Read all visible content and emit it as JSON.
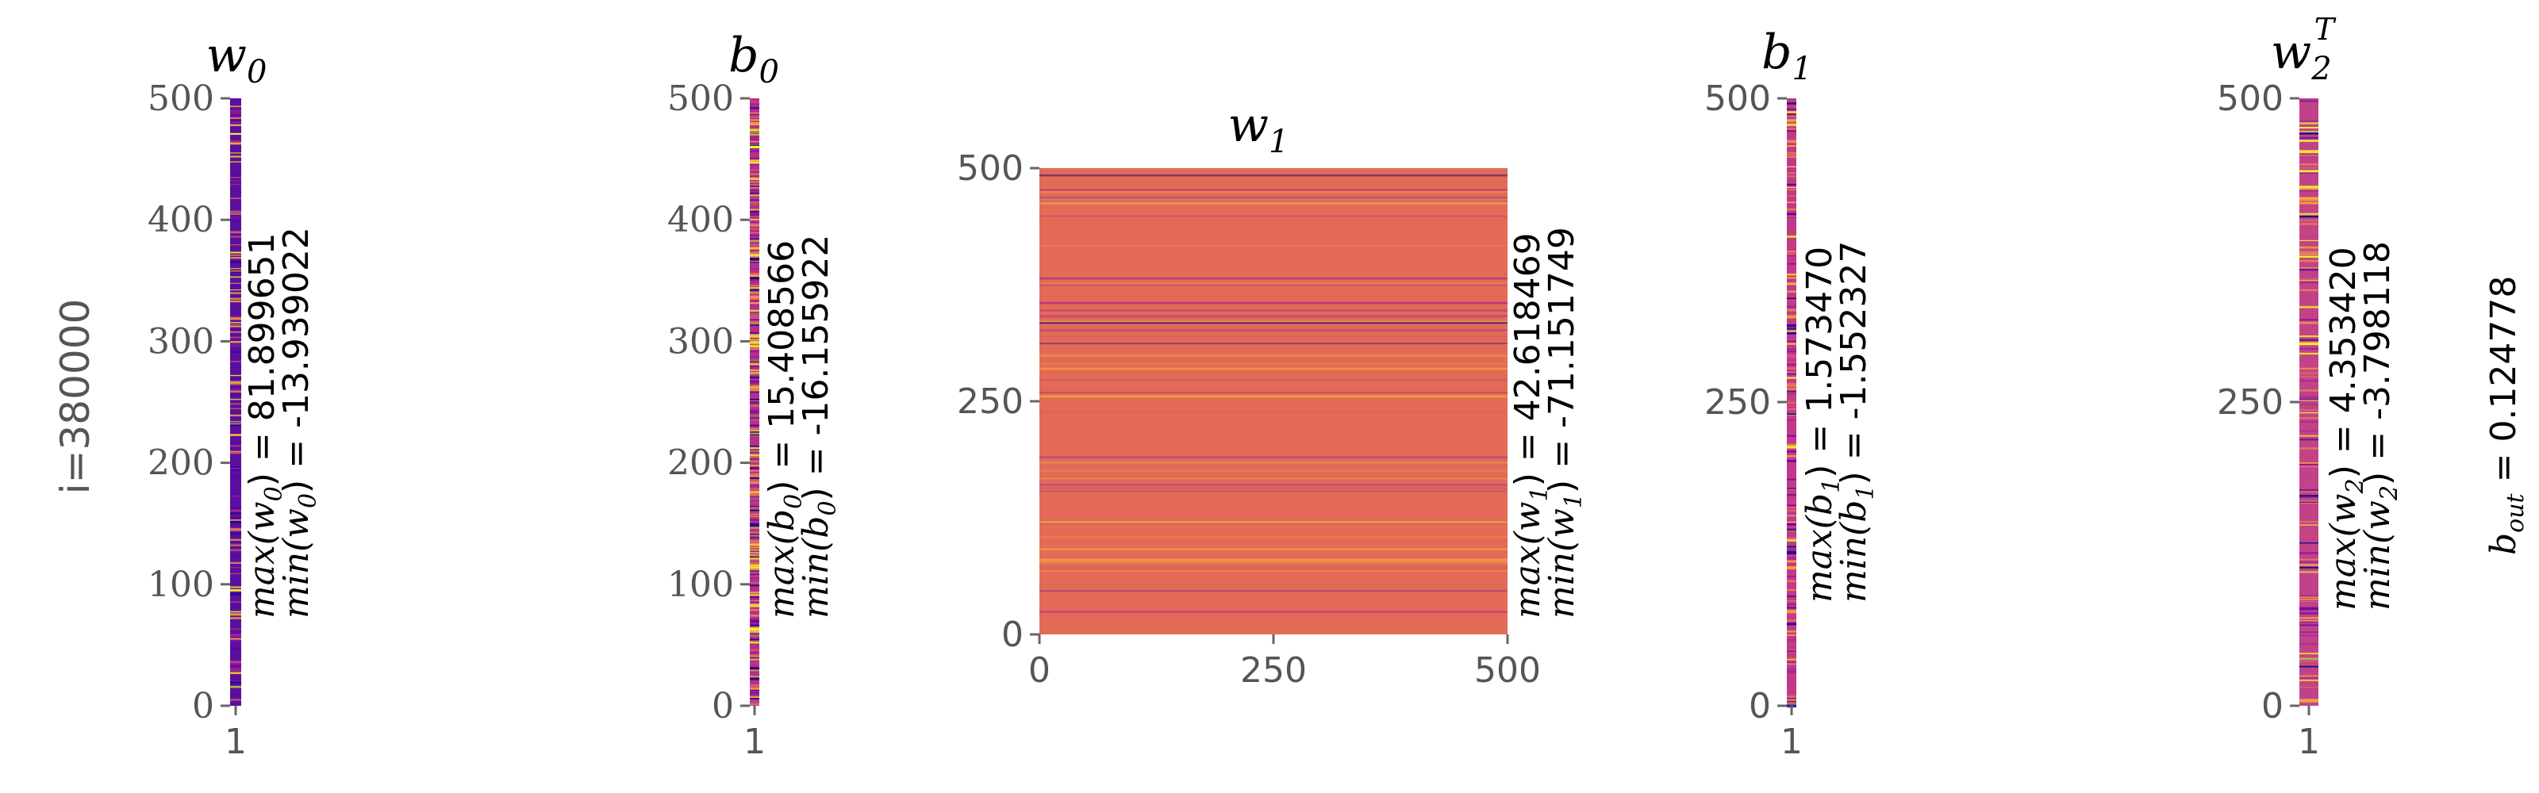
{
  "figure": {
    "row_label": "i=380000",
    "b_out": {
      "label": "b",
      "subscript": "out",
      "value_text": " = 0.124778"
    }
  },
  "colors": {
    "w0_base": "#5a0f9e",
    "b0_base": "#b52f8c",
    "w1_base": "#e26a57",
    "b1_base": "#c13a8a",
    "w2_base": "#c2428a",
    "tick": "#666666",
    "text": "#000000"
  },
  "chart_data": [
    {
      "id": "w0",
      "type": "heatmap",
      "title": {
        "base": "w",
        "sub": "0",
        "sup": ""
      },
      "xticks": [
        "1"
      ],
      "yticks": [
        "0",
        "100",
        "200",
        "300",
        "400",
        "500"
      ],
      "ylim": [
        0,
        500
      ],
      "tick_font": "serif",
      "colormap": "plasma",
      "stats": {
        "max_label": "max(w",
        "max_sub": "0",
        "max_value": ") = 81.899651",
        "min_label": "min(w",
        "min_sub": "0",
        "min_value": ") = -13.939022"
      }
    },
    {
      "id": "b0",
      "type": "heatmap",
      "title": {
        "base": "b",
        "sub": "0",
        "sup": ""
      },
      "xticks": [
        "1"
      ],
      "yticks": [
        "0",
        "100",
        "200",
        "300",
        "400",
        "500"
      ],
      "ylim": [
        0,
        500
      ],
      "tick_font": "serif",
      "colormap": "plasma",
      "stats": {
        "max_label": "max(b",
        "max_sub": "0",
        "max_value": ") = 15.408566",
        "min_label": "min(b",
        "min_sub": "0",
        "min_value": ") = -16.155922"
      }
    },
    {
      "id": "w1",
      "type": "heatmap",
      "title": {
        "base": "w",
        "sub": "1",
        "sup": ""
      },
      "xticks": [
        "0",
        "250",
        "500"
      ],
      "yticks": [
        "0",
        "250",
        "500"
      ],
      "xlim": [
        0,
        500
      ],
      "ylim": [
        0,
        500
      ],
      "tick_font": "sans",
      "colormap": "plasma",
      "stats": {
        "max_label": "max(w",
        "max_sub": "1",
        "max_value": ") = 42.618469",
        "min_label": "min(w",
        "min_sub": "1",
        "min_value": ") = -71.151749"
      }
    },
    {
      "id": "b1",
      "type": "heatmap",
      "title": {
        "base": "b",
        "sub": "1",
        "sup": ""
      },
      "xticks": [
        "1"
      ],
      "yticks": [
        "0",
        "250",
        "500"
      ],
      "ylim": [
        0,
        500
      ],
      "tick_font": "sans",
      "colormap": "plasma",
      "stats": {
        "max_label": "max(b",
        "max_sub": "1",
        "max_value": ") = 1.573470",
        "min_label": "min(b",
        "min_sub": "1",
        "min_value": ") = -1.552327"
      }
    },
    {
      "id": "w2",
      "type": "heatmap",
      "title": {
        "base": "w",
        "sub": "2",
        "sup": "T"
      },
      "xticks": [
        "1"
      ],
      "yticks": [
        "0",
        "250",
        "500"
      ],
      "ylim": [
        0,
        500
      ],
      "tick_font": "sans",
      "colormap": "plasma",
      "stats": {
        "max_label": "max(w",
        "max_sub": "2",
        "max_value": ") = 4.353420",
        "min_label": "min(w",
        "min_sub": "2",
        "min_value": ") = -3.798118"
      }
    }
  ]
}
